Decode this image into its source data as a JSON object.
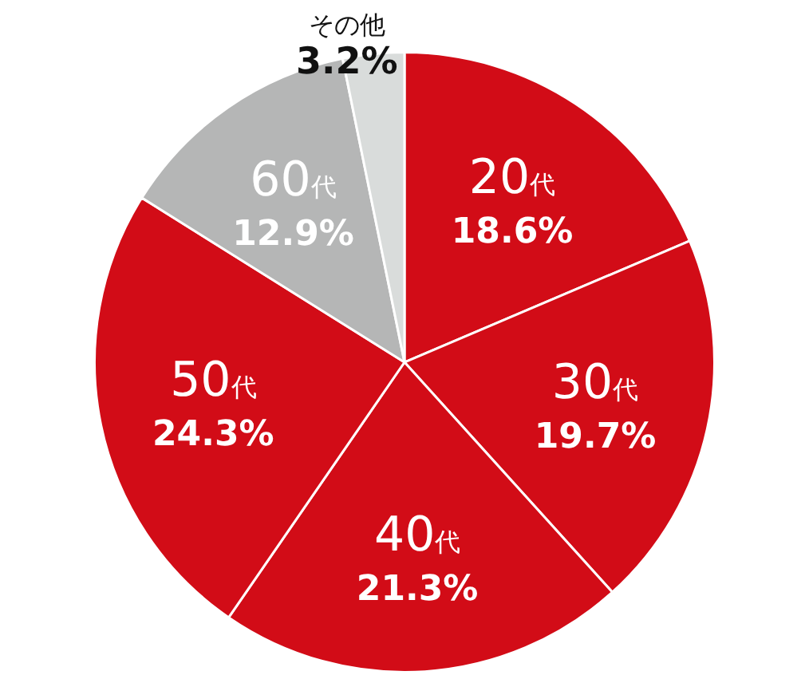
{
  "chart_data": {
    "type": "pie",
    "categories": [
      "20代",
      "30代",
      "40代",
      "50代",
      "60代",
      "その他"
    ],
    "values": [
      18.6,
      19.7,
      21.3,
      24.3,
      12.9,
      3.2
    ],
    "colors": [
      "#d20c17",
      "#d20c17",
      "#d20c17",
      "#d20c17",
      "#b5b6b6",
      "#d9dcdb"
    ],
    "value_labels": [
      "18.6%",
      "19.7%",
      "21.3%",
      "24.3%",
      "12.9%",
      "3.2%"
    ],
    "legend": false
  }
}
